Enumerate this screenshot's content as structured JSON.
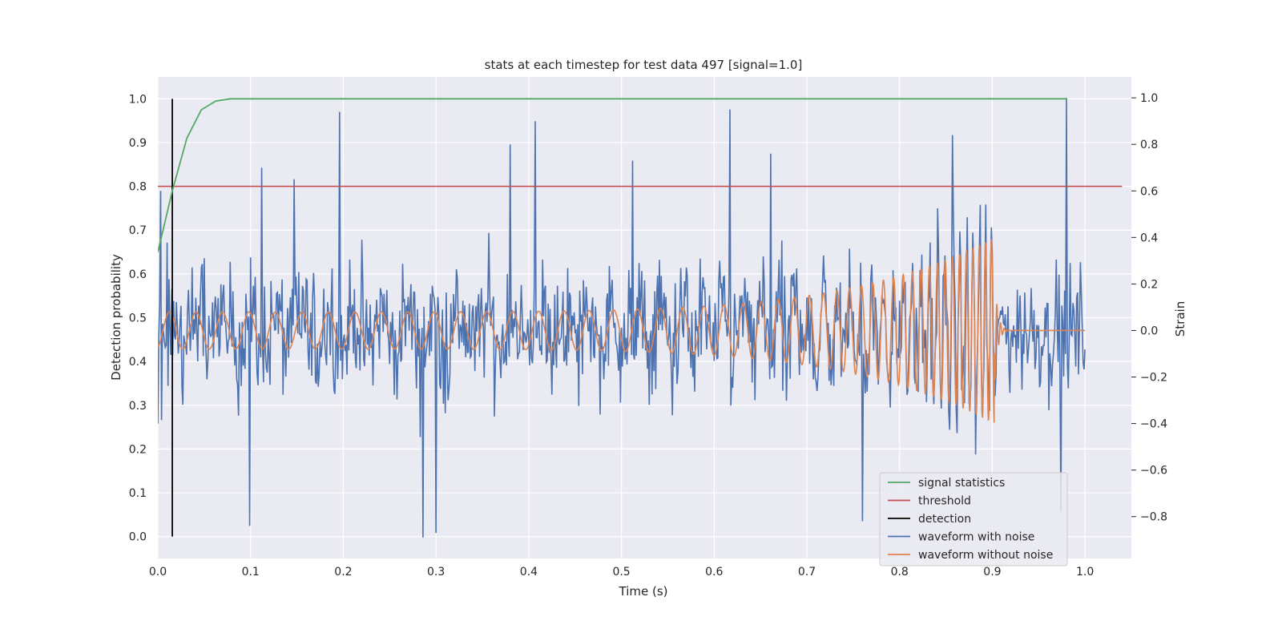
{
  "chart_data": {
    "type": "line",
    "title": "stats at each timestep for test data 497 [signal=1.0]",
    "xlabel": "Time (s)",
    "ylabel_left": "Detection probability",
    "ylabel_right": "Strain",
    "xlim": [
      0.0,
      1.05
    ],
    "ylim_left": [
      -0.05,
      1.05
    ],
    "ylim_right": [
      -0.98,
      1.09
    ],
    "x_ticks": [
      "0.0",
      "0.1",
      "0.2",
      "0.3",
      "0.4",
      "0.5",
      "0.6",
      "0.7",
      "0.8",
      "0.9",
      "1.0"
    ],
    "y_left_ticks": [
      "0.0",
      "0.1",
      "0.2",
      "0.3",
      "0.4",
      "0.5",
      "0.6",
      "0.7",
      "0.8",
      "0.9",
      "1.0"
    ],
    "y_right_ticks": [
      "−0.8",
      "−0.6",
      "−0.4",
      "−0.2",
      "0.0",
      "0.2",
      "0.4",
      "0.6",
      "0.8",
      "1.0"
    ],
    "grid": true,
    "background": "#eaeaf2",
    "legend_position": "lower-right",
    "series": [
      {
        "name": "signal statistics",
        "axis": "left",
        "color": "#55a868",
        "x": [
          0.0,
          0.0156,
          0.0313,
          0.0469,
          0.0625,
          0.0781,
          0.1,
          0.3,
          0.5,
          0.7,
          0.9,
          0.98
        ],
        "y": [
          0.65,
          0.79,
          0.91,
          0.975,
          0.995,
          1.0,
          1.0,
          1.0,
          1.0,
          1.0,
          1.0,
          1.0
        ]
      },
      {
        "name": "threshold",
        "axis": "left",
        "color": "#c44e52",
        "x": [
          0.0,
          1.04
        ],
        "y": [
          0.8,
          0.8
        ]
      },
      {
        "name": "detection",
        "axis": "left",
        "color": "#000000",
        "x": [
          0.0156,
          0.0156
        ],
        "y": [
          0.0,
          1.0
        ]
      },
      {
        "name": "waveform with noise",
        "axis": "right",
        "color": "#4c72b0",
        "noise_amplitude": 0.3,
        "x_range": [
          0.0,
          1.0
        ],
        "peaks": [
          {
            "x": 0.0,
            "y": -0.4
          },
          {
            "x": 0.003,
            "y": 0.6
          },
          {
            "x": 0.099,
            "y": -0.84
          },
          {
            "x": 0.112,
            "y": 0.7
          },
          {
            "x": 0.147,
            "y": 0.65
          },
          {
            "x": 0.196,
            "y": 0.94
          },
          {
            "x": 0.286,
            "y": -0.89
          },
          {
            "x": 0.3,
            "y": -0.87
          },
          {
            "x": 0.38,
            "y": 0.8
          },
          {
            "x": 0.407,
            "y": 0.9
          },
          {
            "x": 0.512,
            "y": 0.73
          },
          {
            "x": 0.617,
            "y": 0.95
          },
          {
            "x": 0.661,
            "y": 0.76
          },
          {
            "x": 0.76,
            "y": -0.82
          },
          {
            "x": 0.857,
            "y": 0.84
          },
          {
            "x": 0.98,
            "y": 1.0
          },
          {
            "x": 0.974,
            "y": -0.78
          }
        ]
      },
      {
        "name": "waveform without noise",
        "axis": "right",
        "color": "#dd8452",
        "x_range": [
          0.0,
          1.0
        ],
        "amplitude_start": 0.08,
        "amplitude_near_merger": 0.4,
        "frequency_start_hz": 35,
        "frequency_near_merger_hz": 180,
        "merger_time": 0.902,
        "ringdown_end": 0.915,
        "post_merger_value": 0.0
      }
    ]
  }
}
